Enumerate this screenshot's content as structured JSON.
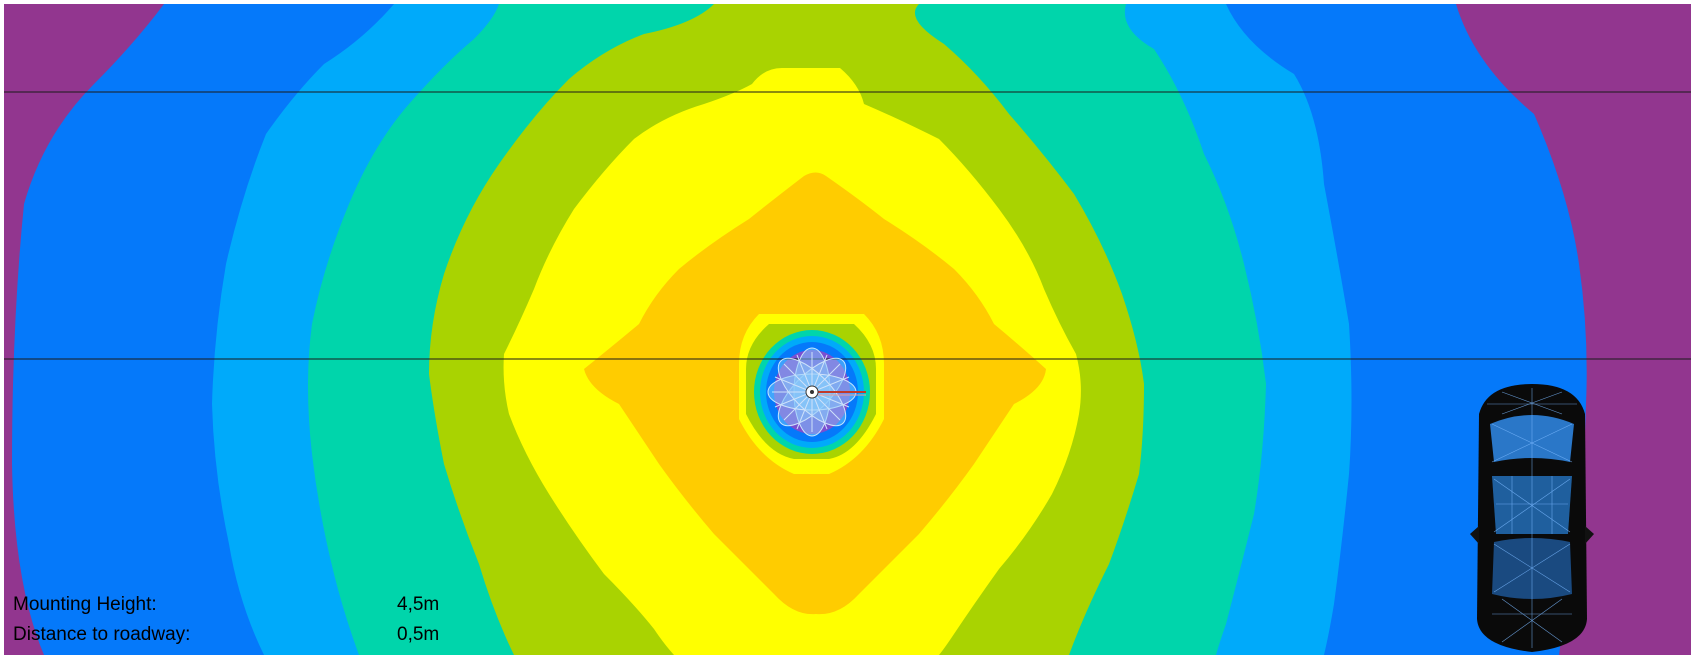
{
  "info": {
    "mounting_height_label": "Mounting Height:",
    "mounting_height_value": "4,5m",
    "distance_label": "Distance to roadway:",
    "distance_value": "0,5m"
  },
  "legend_colors": [
    "#92368f",
    "#0579fa",
    "#00aafa",
    "#00d5ab",
    "#a9d301",
    "#ffff00",
    "#ffcc00"
  ],
  "icons": [
    "luminaire-icon",
    "car-icon"
  ]
}
